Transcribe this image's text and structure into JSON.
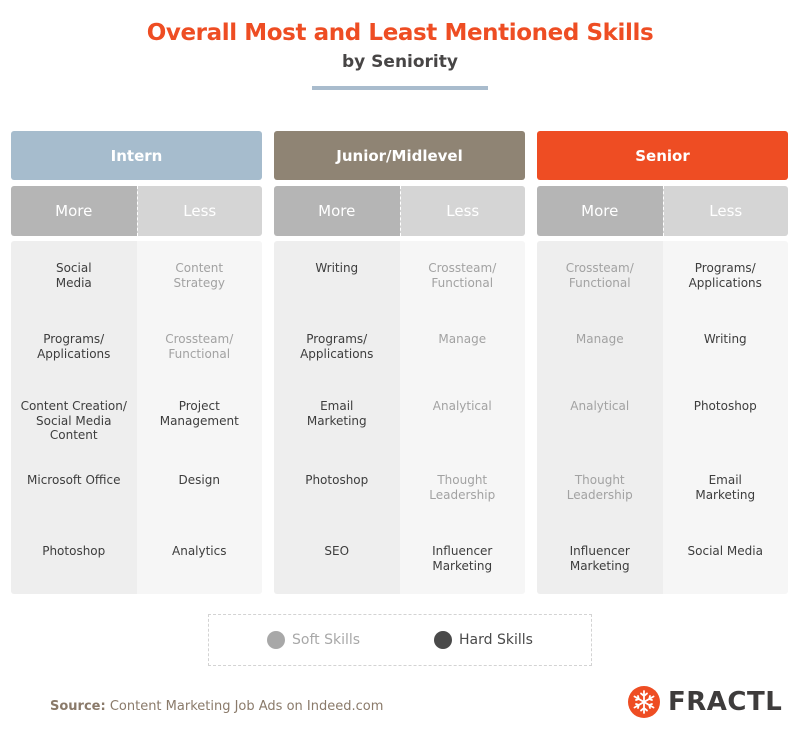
{
  "header": {
    "title": "Overall Most and Least Mentioned Skills",
    "subtitle": "by Seniority",
    "title_color": "#ee4d23",
    "rule_color": "#a9bccd"
  },
  "columns": [
    {
      "label": "Intern",
      "color": "#a6bccd",
      "more_label": "More",
      "less_label": "Less",
      "more": [
        {
          "text": "Social\nMedia",
          "type": "hard"
        },
        {
          "text": "Programs/\nApplications",
          "type": "hard"
        },
        {
          "text": "Content Creation/\nSocial Media\nContent",
          "type": "hard"
        },
        {
          "text": "Microsoft Office",
          "type": "hard"
        },
        {
          "text": "Photoshop",
          "type": "hard"
        }
      ],
      "less": [
        {
          "text": "Content\nStrategy",
          "type": "soft"
        },
        {
          "text": "Crossteam/\nFunctional",
          "type": "soft"
        },
        {
          "text": "Project\nManagement",
          "type": "hard"
        },
        {
          "text": "Design",
          "type": "hard"
        },
        {
          "text": "Analytics",
          "type": "hard"
        }
      ]
    },
    {
      "label": "Junior/Midlevel",
      "color": "#8f8474",
      "more_label": "More",
      "less_label": "Less",
      "more": [
        {
          "text": "Writing",
          "type": "hard"
        },
        {
          "text": "Programs/\nApplications",
          "type": "hard"
        },
        {
          "text": "Email\nMarketing",
          "type": "hard"
        },
        {
          "text": "Photoshop",
          "type": "hard"
        },
        {
          "text": "SEO",
          "type": "hard"
        }
      ],
      "less": [
        {
          "text": "Crossteam/\nFunctional",
          "type": "soft"
        },
        {
          "text": "Manage",
          "type": "soft"
        },
        {
          "text": "Analytical",
          "type": "soft"
        },
        {
          "text": "Thought\nLeadership",
          "type": "soft"
        },
        {
          "text": "Influencer\nMarketing",
          "type": "hard"
        }
      ]
    },
    {
      "label": "Senior",
      "color": "#ee4d23",
      "more_label": "More",
      "less_label": "Less",
      "more": [
        {
          "text": "Crossteam/\nFunctional",
          "type": "soft"
        },
        {
          "text": "Manage",
          "type": "soft"
        },
        {
          "text": "Analytical",
          "type": "soft"
        },
        {
          "text": "Thought\nLeadership",
          "type": "soft"
        },
        {
          "text": "Influencer\nMarketing",
          "type": "hard"
        }
      ],
      "less": [
        {
          "text": "Programs/\nApplications",
          "type": "hard"
        },
        {
          "text": "Writing",
          "type": "hard"
        },
        {
          "text": "Photoshop",
          "type": "hard"
        },
        {
          "text": "Email\nMarketing",
          "type": "hard"
        },
        {
          "text": "Social Media",
          "type": "hard"
        }
      ]
    }
  ],
  "legend": {
    "soft_label": "Soft Skills",
    "soft_color": "#a8a8a8",
    "hard_label": "Hard Skills",
    "hard_color": "#4a4a4a"
  },
  "footer": {
    "source_label": "Source:",
    "source_text": "Content Marketing Job Ads on Indeed.com",
    "logo_text": "FRACTL",
    "logo_icon": "fractl-snowflake-icon",
    "logo_color": "#ee4d23"
  }
}
